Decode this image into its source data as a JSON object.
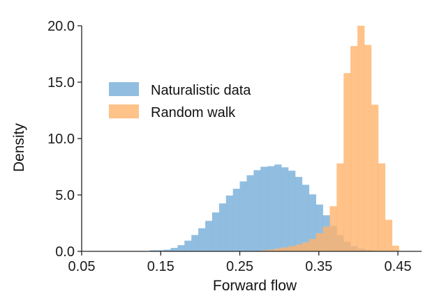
{
  "chart_data": {
    "type": "histogram",
    "title": "",
    "xlabel": "Forward flow",
    "ylabel": "Density",
    "xlim": [
      0.05,
      0.48
    ],
    "ylim": [
      0,
      20
    ],
    "xticks": [
      0.05,
      0.15,
      0.25,
      0.35,
      0.45
    ],
    "xtick_labels": [
      "0.05",
      "0.15",
      "0.25",
      "0.35",
      "0.45"
    ],
    "yticks": [
      0,
      5,
      10,
      15,
      20
    ],
    "ytick_labels": [
      "0.0",
      "5.0",
      "10.0",
      "15.0",
      "20.0"
    ],
    "bin_width": 0.00875,
    "legend_position": "upper-left",
    "series": [
      {
        "name": "Naturalistic data",
        "color": "#7eb3da",
        "opacity": 0.85,
        "bin_start": [
          0.1363,
          0.145,
          0.1538,
          0.1625,
          0.1713,
          0.18,
          0.1888,
          0.1975,
          0.2063,
          0.215,
          0.2238,
          0.2325,
          0.2413,
          0.25,
          0.2588,
          0.2675,
          0.2763,
          0.285,
          0.2938,
          0.3025,
          0.3113,
          0.32,
          0.3288,
          0.3375,
          0.3463,
          0.355,
          0.3638,
          0.3725,
          0.3813,
          0.39,
          0.3988,
          0.4075,
          0.4163,
          0.425
        ],
        "values": [
          0.1,
          0.1,
          0.15,
          0.3,
          0.55,
          0.95,
          1.45,
          2.05,
          2.7,
          3.45,
          4.25,
          4.95,
          5.55,
          6.2,
          6.75,
          7.2,
          7.5,
          7.55,
          7.7,
          7.45,
          7.15,
          6.6,
          5.9,
          5.05,
          4.15,
          3.2,
          2.25,
          1.45,
          0.85,
          0.45,
          0.25,
          0.12,
          0.06,
          0.02
        ]
      },
      {
        "name": "Random walk",
        "color": "#ffb36b",
        "opacity": 0.8,
        "bin_start": [
          0.2763,
          0.285,
          0.2938,
          0.3025,
          0.3113,
          0.32,
          0.3288,
          0.3375,
          0.3463,
          0.355,
          0.3638,
          0.3725,
          0.3813,
          0.39,
          0.3988,
          0.4075,
          0.4163,
          0.425,
          0.4338,
          0.4425
        ],
        "values": [
          0.1,
          0.15,
          0.25,
          0.35,
          0.45,
          0.6,
          0.8,
          1.1,
          1.6,
          2.2,
          4.0,
          7.8,
          15.8,
          18.2,
          20.0,
          18.3,
          13.0,
          7.8,
          2.8,
          0.5
        ]
      }
    ]
  }
}
